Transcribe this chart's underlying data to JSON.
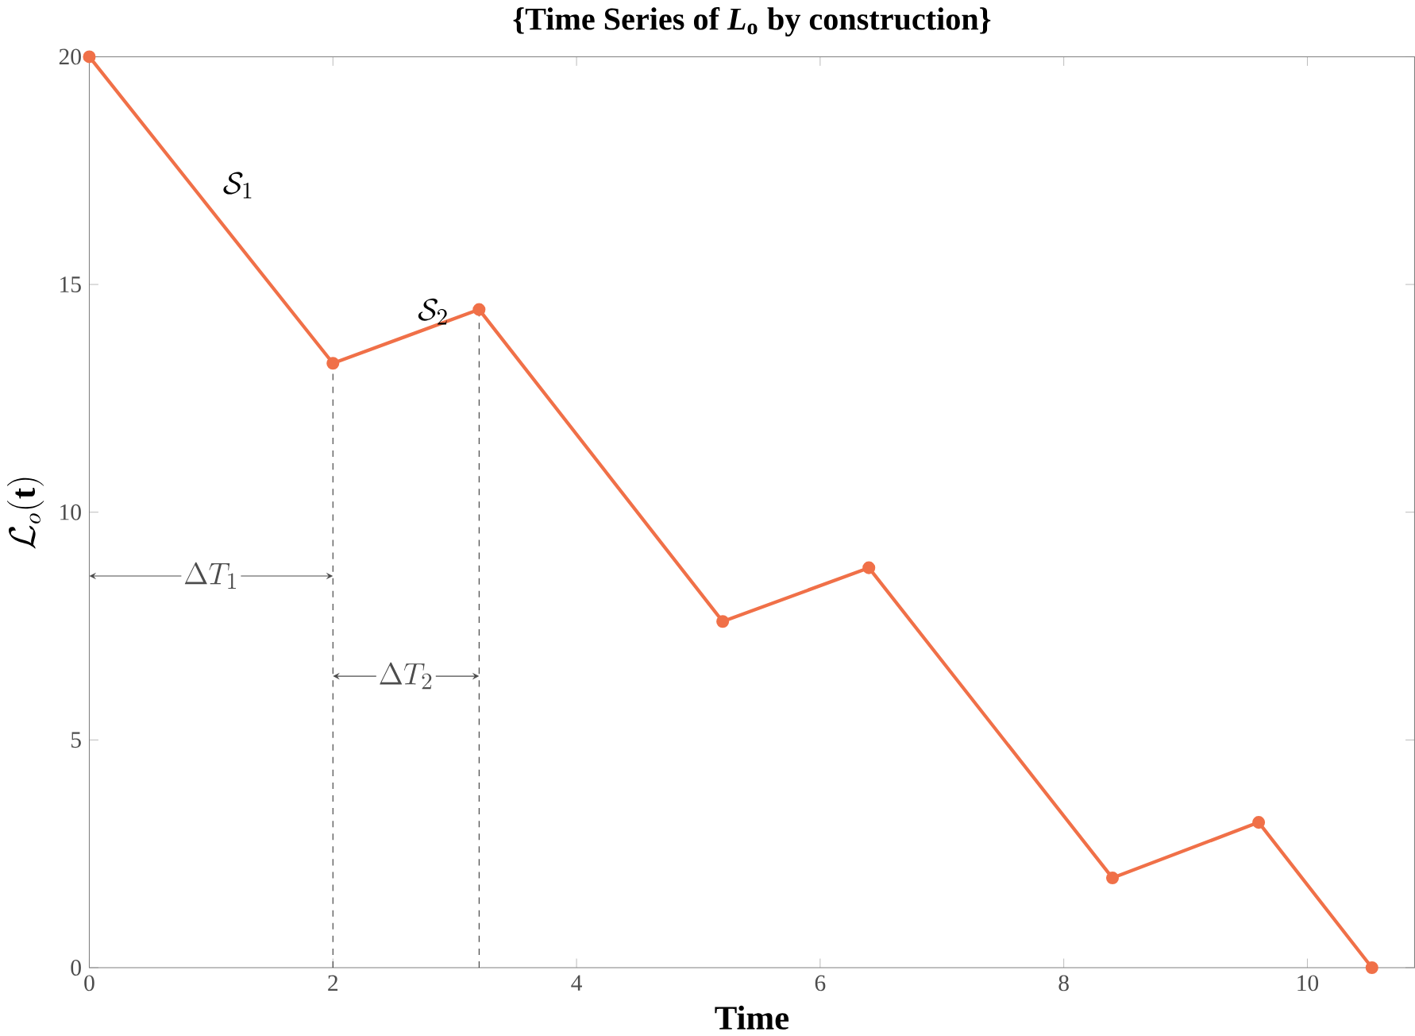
{
  "chart_data": {
    "type": "line",
    "title": "{Time Series of *L*$_{o}$ by construction}",
    "xlabel": "Time",
    "ylabel": "\\mathcal{L}_o\\mathbf{(t)}",
    "x": [
      0,
      2,
      3.2,
      5.2,
      6.4,
      8.4,
      9.6,
      10.53
    ],
    "series": [
      {
        "color": "#f07048",
        "values": [
          20,
          13.27,
          14.45,
          7.6,
          8.78,
          1.97,
          3.19,
          0
        ]
      }
    ],
    "marker": "circle",
    "line_style": "solid",
    "grid": false,
    "xlim": [
      0,
      10.88
    ],
    "ylim": [
      0,
      20
    ],
    "xticks": [
      0,
      2,
      4,
      6,
      8,
      10
    ],
    "yticks": [
      0,
      5,
      10,
      15,
      20
    ],
    "ref_lines": [
      {
        "axis": "x",
        "value": 2,
        "line_style": "dashed",
        "color": "#333333"
      },
      {
        "axis": "x",
        "value": 3.2,
        "line_style": "dashed",
        "color": "#333333"
      }
    ],
    "annotations": [
      "\\mathcal{S}_1",
      "\\mathcal{S}_2",
      {
        "text": "\\Delta T_1",
        "x": 1,
        "y": 8.6
      },
      {
        "text": "\\Delta T_2",
        "x": 2.6,
        "y": 6.4
      }
    ]
  }
}
